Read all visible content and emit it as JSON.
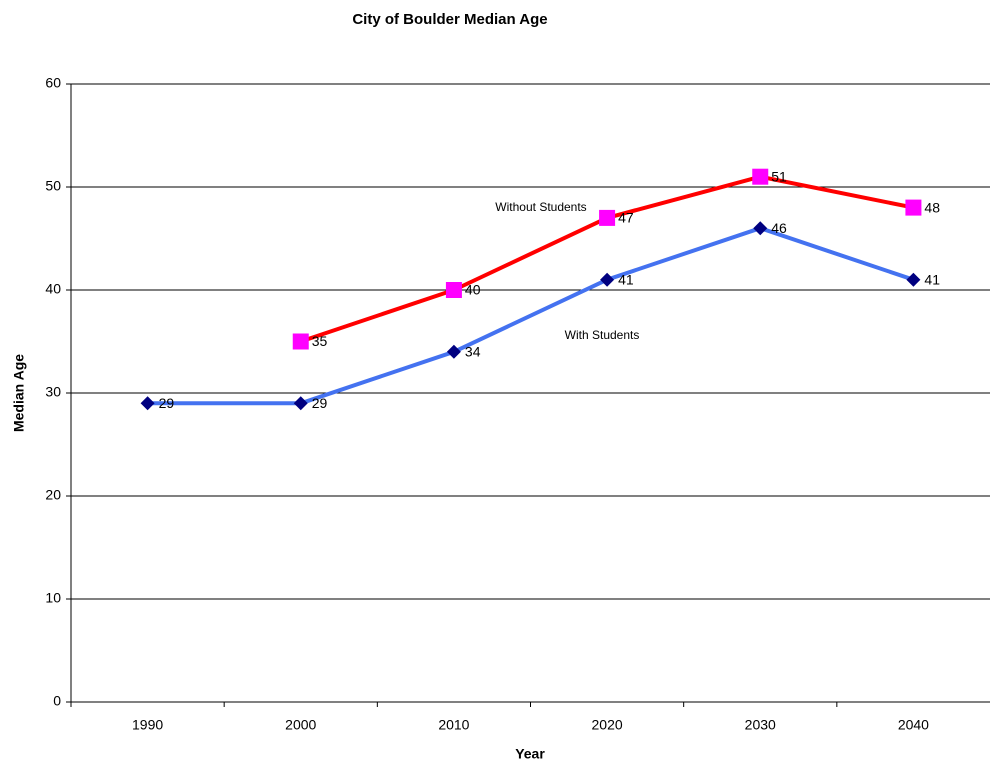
{
  "chart_data": {
    "type": "line",
    "title": "City of Boulder Median Age",
    "x_label": "Year",
    "y_label": "Median Age",
    "categories": [
      "1990",
      "2000",
      "2010",
      "2020",
      "2030",
      "2040"
    ],
    "series": [
      {
        "name": "With Students",
        "color": "#4472f0",
        "marker_color": "#000080",
        "marker": "diamond",
        "values": [
          29,
          29,
          34,
          41,
          46,
          41
        ]
      },
      {
        "name": "Without Students",
        "color": "#ff0000",
        "marker_color": "#ff00ff",
        "marker": "square",
        "values": [
          null,
          35,
          40,
          47,
          51,
          48
        ]
      }
    ],
    "annotations": [
      "Without Students",
      "With Students"
    ],
    "ylim": [
      0,
      60
    ],
    "yticks": [
      0,
      10,
      20,
      30,
      40,
      50,
      60
    ],
    "grid": true
  }
}
